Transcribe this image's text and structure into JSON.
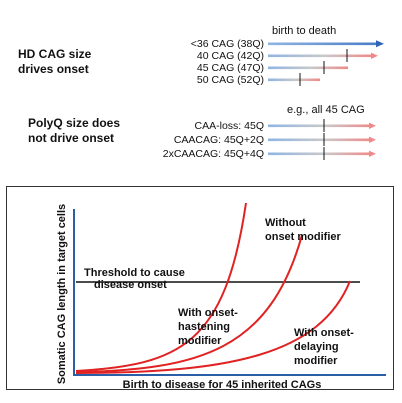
{
  "top_section": {
    "heading_lines": [
      "HD CAG size",
      "drives onset"
    ],
    "column_header": "birth to death",
    "rows": [
      {
        "label": "<36 CAG (38Q)",
        "onset_mark": false,
        "arrowhead": true
      },
      {
        "label": "40 CAG (42Q)",
        "onset_mark": true,
        "arrowhead": true
      },
      {
        "label": "45 CAG (47Q)",
        "onset_mark": true,
        "arrowhead": false
      },
      {
        "label": "50 CAG (52Q)",
        "onset_mark": true,
        "arrowhead": false
      }
    ]
  },
  "middle_section": {
    "heading_lines": [
      "PolyQ size does",
      "not drive onset"
    ],
    "column_header": "e.g., all 45 CAG",
    "rows": [
      {
        "label": "CAA-loss: 45Q"
      },
      {
        "label": "CAACAG: 45Q+2Q"
      },
      {
        "label": "2xCAACAG: 45Q+4Q"
      }
    ]
  },
  "graph": {
    "y_axis_label": "Somatic CAG length in target cells",
    "x_axis_label": "Birth to disease for 45 inherited CAGs",
    "threshold_lines": [
      "Threshold to cause",
      "disease onset"
    ],
    "curve_labels": {
      "without": [
        "Without",
        "onset modifier"
      ],
      "hastening": [
        "With onset-",
        "hastening",
        "modifier"
      ],
      "delaying": [
        "With onset-",
        "delaying",
        "modifier"
      ]
    }
  },
  "colors": {
    "bar_start": "#8fb4e3",
    "bar_mid": "#c9c9c9",
    "bar_end": "#f08a8a",
    "arrow_blue": "#2f63b4",
    "curve_red": "#e12222",
    "axis_blue": "#2a5fa8",
    "frame": "#333333"
  }
}
